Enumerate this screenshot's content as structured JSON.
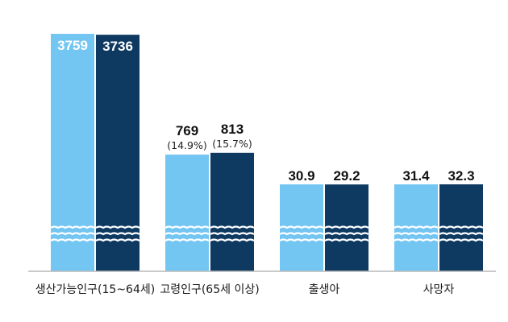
{
  "chart_data": {
    "type": "bar",
    "categories": [
      "생산가능인구(15~64세)",
      "고령인구(65세 이상)",
      "출생아",
      "사망자"
    ],
    "series": [
      {
        "values": [
          3759,
          769,
          30.9,
          31.4
        ],
        "percent_labels": [
          null,
          "(14.9%)",
          null,
          null
        ],
        "color": "#74c6f2"
      },
      {
        "values": [
          3736,
          813,
          29.2,
          32.3
        ],
        "percent_labels": [
          null,
          "(15.7%)",
          null,
          null
        ],
        "color": "#0e3961"
      }
    ],
    "axis_break": true,
    "grid": false,
    "xlabel": "",
    "ylabel": ""
  }
}
